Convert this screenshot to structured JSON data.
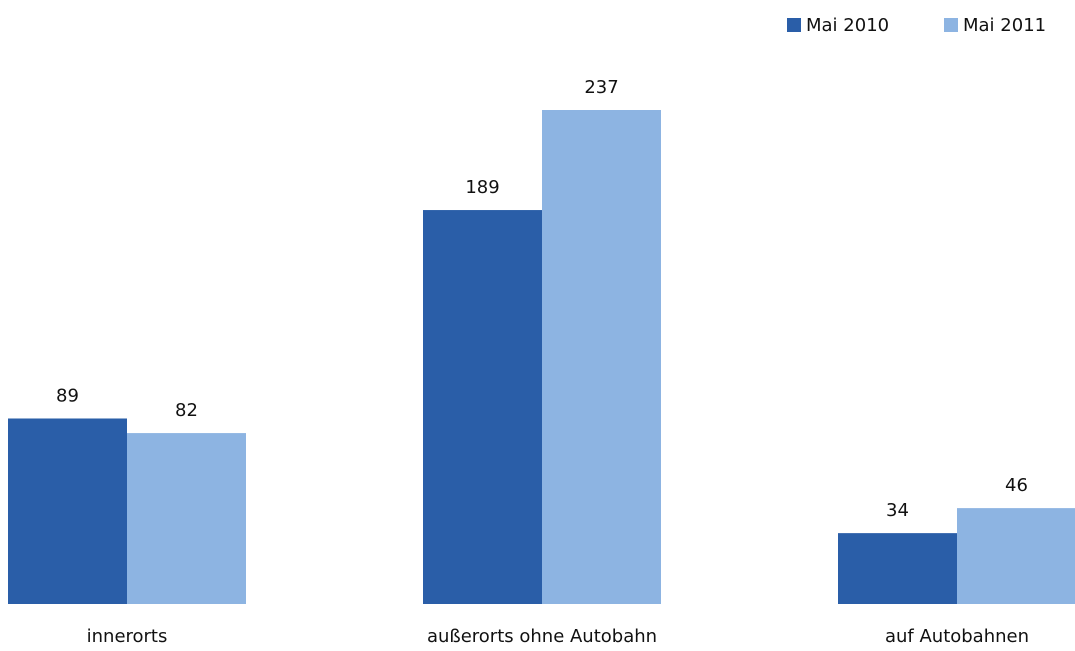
{
  "chart_data": {
    "type": "bar",
    "categories": [
      "innerorts",
      "außerorts ohne Autobahn",
      "auf Autobahnen"
    ],
    "series": [
      {
        "name": "Mai 2010",
        "color": "#2a5ea8",
        "values": [
          89,
          189,
          34
        ]
      },
      {
        "name": "Mai 2011",
        "color": "#8db4e2",
        "values": [
          82,
          237,
          46
        ]
      }
    ],
    "legend": "top-right"
  }
}
